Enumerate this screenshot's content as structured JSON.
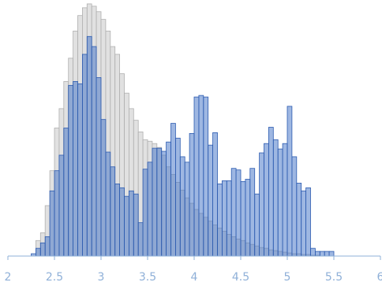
{
  "chart_data": {
    "type": "histogram",
    "bins": [
      2.25,
      2.3,
      2.35,
      2.4,
      2.45,
      2.5,
      2.55,
      2.6,
      2.65,
      2.7,
      2.75,
      2.8,
      2.85,
      2.9,
      2.95,
      3,
      3.05,
      3.1,
      3.15,
      3.2,
      3.25,
      3.3,
      3.35,
      3.4,
      3.45,
      3.5,
      3.55,
      3.6,
      3.65,
      3.7,
      3.75,
      3.8,
      3.85,
      3.9,
      3.95,
      4,
      4.05,
      4.1,
      4.15,
      4.2,
      4.25,
      4.3,
      4.35,
      4.4,
      4.45,
      4.5,
      4.55,
      4.6,
      4.65,
      4.7,
      4.75,
      4.8,
      4.85,
      4.9,
      4.95,
      5,
      5.05,
      5.1,
      5.15,
      5.2,
      5.25,
      5.3,
      5.35,
      5.4,
      5.45,
      5.5,
      5.55
    ],
    "series": [
      {
        "color": "#d9d9d9",
        "values": [
          0,
          20,
          30,
          65,
          110,
          165,
          190,
          225,
          255,
          290,
          310,
          320,
          325,
          322,
          315,
          305,
          290,
          270,
          260,
          235,
          210,
          190,
          175,
          160,
          150,
          148,
          145,
          140,
          130,
          115,
          105,
          95,
          85,
          75,
          68,
          60,
          55,
          50,
          45,
          40,
          36,
          32,
          28,
          25,
          22,
          20,
          17,
          15,
          13,
          11,
          10,
          8,
          7,
          6,
          5,
          4,
          3,
          3,
          2,
          2,
          1,
          1,
          0,
          0,
          0,
          0
        ]
      },
      {
        "color": "#3d6fc6",
        "values": [
          3,
          10,
          17,
          25,
          84,
          110,
          130,
          165,
          220,
          225,
          222,
          260,
          283,
          270,
          230,
          176,
          134,
          115,
          93,
          88,
          77,
          84,
          80,
          43,
          112,
          121,
          139,
          139,
          135,
          147,
          171,
          152,
          128,
          121,
          158,
          205,
          207,
          205,
          143,
          159,
          93,
          97,
          97,
          113,
          111,
          96,
          99,
          113,
          80,
          133,
          145,
          166,
          150,
          138,
          145,
          193,
          128,
          94,
          84,
          88,
          10,
          6,
          6,
          6,
          6,
          0
        ]
      }
    ],
    "xlim": [
      2,
      6
    ],
    "xticks": [
      2,
      2.5,
      3,
      3.5,
      4,
      4.5,
      5,
      5.5,
      6
    ],
    "ylim": [
      0,
      330
    ]
  }
}
